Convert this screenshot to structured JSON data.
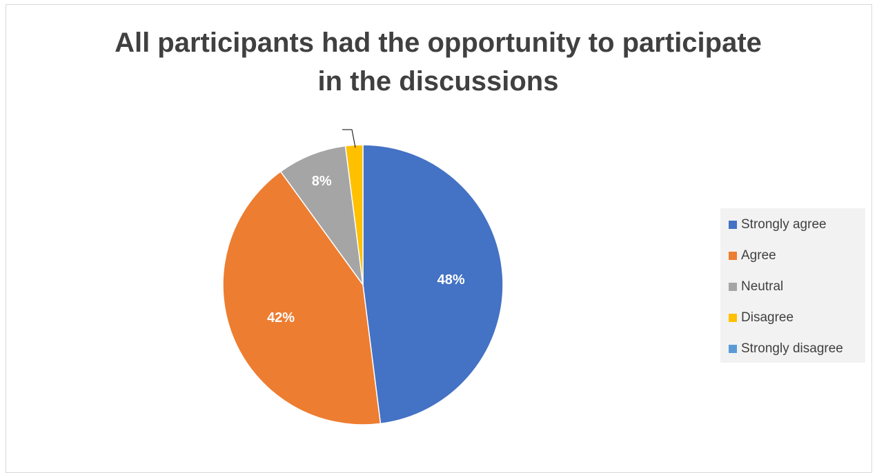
{
  "chart_data": {
    "type": "pie",
    "title_lines": [
      "All participants had the opportunity to participate",
      "in the discussions"
    ],
    "categories": [
      "Strongly agree",
      "Agree",
      "Neutral",
      "Disagree",
      "Strongly disagree"
    ],
    "values": [
      48,
      42,
      8,
      2,
      0
    ],
    "data_labels": [
      "48%",
      "42%",
      "8%",
      "",
      ""
    ],
    "colors": [
      "#4472c4",
      "#ed7d31",
      "#a5a5a5",
      "#ffc000",
      "#5b9bd5"
    ],
    "legend_position": "right"
  }
}
